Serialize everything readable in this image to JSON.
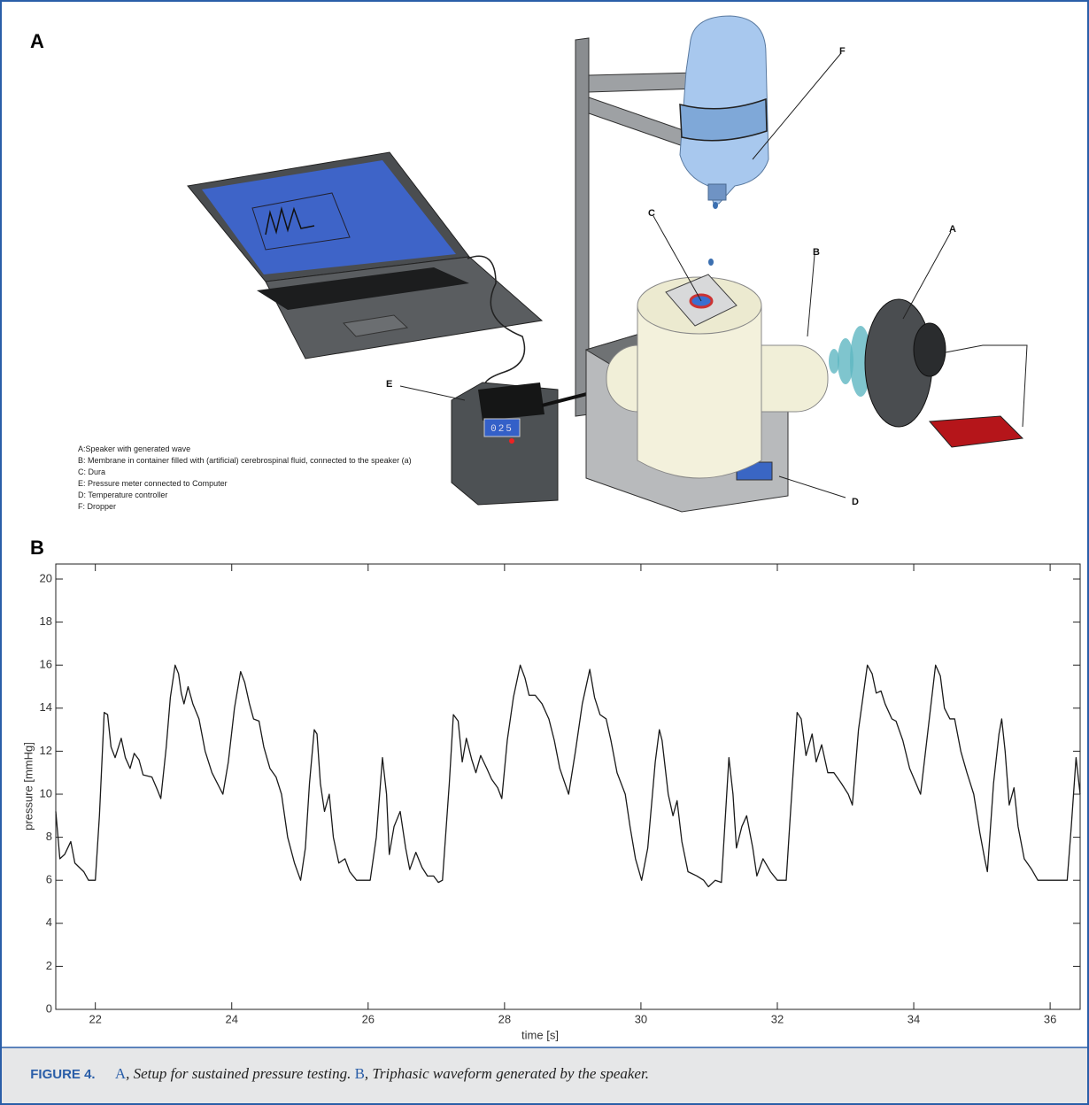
{
  "panel_a": {
    "letter": "A",
    "callouts": [
      "A",
      "B",
      "C",
      "D",
      "E",
      "F"
    ],
    "display_reading": "025",
    "legend": [
      "A:Speaker with generated wave",
      "B: Membrane in container filled with (artificial) cerebrospinal fluid, connected to the speaker (a)",
      "C: Dura",
      "E: Pressure meter connected to Computer",
      "D: Temperature controller",
      "F: Dropper"
    ]
  },
  "panel_b": {
    "letter": "B"
  },
  "chart_data": {
    "type": "line",
    "xlabel": "time [s]",
    "ylabel": "pressure [mmHg]",
    "xlim": [
      21.42,
      36.44
    ],
    "ylim": [
      0,
      20.7
    ],
    "xticks": [
      22,
      24,
      26,
      28,
      30,
      32,
      34,
      36
    ],
    "yticks": [
      0,
      2,
      4,
      6,
      8,
      10,
      12,
      14,
      16,
      18,
      20
    ],
    "color": "#1a1a1a",
    "grid": false,
    "x": [
      21.42,
      21.48,
      21.55,
      21.64,
      21.7,
      21.83,
      21.9,
      22.0,
      22.06,
      22.13,
      22.18,
      22.23,
      22.29,
      22.38,
      22.44,
      22.51,
      22.57,
      22.64,
      22.7,
      22.83,
      22.91,
      22.96,
      23.04,
      23.1,
      23.17,
      23.22,
      23.26,
      23.3,
      23.36,
      23.43,
      23.52,
      23.61,
      23.71,
      23.87,
      23.95,
      24.04,
      24.13,
      24.19,
      24.26,
      24.32,
      24.4,
      24.47,
      24.56,
      24.65,
      24.73,
      24.82,
      24.92,
      25.01,
      25.08,
      25.14,
      25.21,
      25.25,
      25.3,
      25.36,
      25.43,
      25.49,
      25.57,
      25.66,
      25.73,
      25.83,
      26.03,
      26.12,
      26.21,
      26.27,
      26.31,
      26.38,
      26.47,
      26.55,
      26.61,
      26.7,
      26.79,
      26.87,
      26.96,
      27.03,
      27.09,
      27.19,
      27.25,
      27.32,
      27.38,
      27.44,
      27.52,
      27.58,
      27.65,
      27.74,
      27.81,
      27.9,
      27.96,
      28.04,
      28.13,
      28.23,
      28.3,
      28.36,
      28.45,
      28.55,
      28.65,
      28.73,
      28.81,
      28.94,
      29.04,
      29.14,
      29.25,
      29.32,
      29.4,
      29.49,
      29.56,
      29.65,
      29.77,
      29.84,
      29.92,
      30.01,
      30.1,
      30.21,
      30.27,
      30.31,
      30.4,
      30.47,
      30.53,
      30.6,
      30.69,
      30.82,
      30.92,
      30.99,
      31.09,
      31.18,
      31.22,
      31.29,
      31.35,
      31.4,
      31.48,
      31.55,
      31.64,
      31.7,
      31.79,
      31.9,
      32.0,
      32.13,
      32.19,
      32.29,
      32.35,
      32.42,
      32.51,
      32.57,
      32.65,
      32.74,
      32.83,
      32.94,
      33.04,
      33.1,
      33.19,
      33.32,
      33.39,
      33.45,
      33.52,
      33.58,
      33.68,
      33.74,
      33.84,
      33.94,
      34.1,
      34.21,
      34.32,
      34.39,
      34.45,
      34.53,
      34.6,
      34.69,
      34.78,
      34.88,
      34.97,
      35.04,
      35.08,
      35.17,
      35.25,
      35.29,
      35.34,
      35.4,
      35.47,
      35.53,
      35.62,
      35.73,
      35.82,
      36.25,
      36.31,
      36.38,
      36.44
    ],
    "values": [
      9.2,
      7.0,
      7.2,
      7.8,
      6.8,
      6.4,
      6.0,
      6.0,
      9.0,
      13.8,
      13.7,
      12.2,
      11.7,
      12.6,
      11.7,
      11.2,
      11.9,
      11.6,
      10.9,
      10.8,
      10.2,
      9.8,
      12.2,
      14.5,
      16.0,
      15.6,
      14.7,
      14.2,
      15.0,
      14.2,
      13.5,
      12.0,
      11.0,
      10.0,
      11.5,
      14.0,
      15.7,
      15.2,
      14.2,
      13.5,
      13.4,
      12.2,
      11.2,
      10.8,
      10.0,
      8.0,
      6.8,
      6.0,
      7.5,
      10.5,
      13.0,
      12.8,
      10.5,
      9.2,
      10.0,
      8.0,
      6.8,
      7.0,
      6.4,
      6.0,
      6.0,
      8.0,
      11.7,
      10.0,
      7.2,
      8.5,
      9.2,
      7.5,
      6.5,
      7.3,
      6.6,
      6.2,
      6.2,
      5.9,
      6.0,
      10.5,
      13.7,
      13.4,
      11.5,
      12.6,
      11.6,
      11.0,
      11.8,
      11.2,
      10.7,
      10.3,
      9.8,
      12.5,
      14.5,
      16.0,
      15.4,
      14.6,
      14.6,
      14.2,
      13.5,
      12.5,
      11.2,
      10.0,
      12.0,
      14.2,
      15.8,
      14.5,
      13.7,
      13.5,
      12.5,
      11.0,
      10.0,
      8.5,
      7.0,
      6.0,
      7.5,
      11.5,
      13.0,
      12.5,
      10.0,
      9.0,
      9.7,
      7.8,
      6.4,
      6.2,
      6.0,
      5.7,
      6.0,
      5.9,
      8.0,
      11.7,
      10.0,
      7.5,
      8.5,
      9.0,
      7.5,
      6.2,
      7.0,
      6.4,
      6.0,
      6.0,
      9.0,
      13.8,
      13.5,
      11.8,
      12.8,
      11.5,
      12.3,
      11.0,
      11.0,
      10.5,
      10.0,
      9.5,
      13.0,
      16.0,
      15.6,
      14.7,
      14.8,
      14.2,
      13.5,
      13.4,
      12.5,
      11.2,
      10.0,
      13.0,
      16.0,
      15.5,
      14.0,
      13.5,
      13.5,
      12.0,
      11.0,
      10.0,
      8.2,
      7.0,
      6.4,
      10.5,
      12.8,
      13.5,
      12.0,
      9.5,
      10.3,
      8.5,
      7.0,
      6.5,
      6.0,
      6.0,
      8.5,
      11.7,
      10.0
    ]
  },
  "caption": {
    "label": "FIGURE 4.",
    "parts": [
      "A",
      ", Setup for sustained pressure testing. ",
      "B",
      ", Triphasic waveform generated by the speaker."
    ]
  }
}
